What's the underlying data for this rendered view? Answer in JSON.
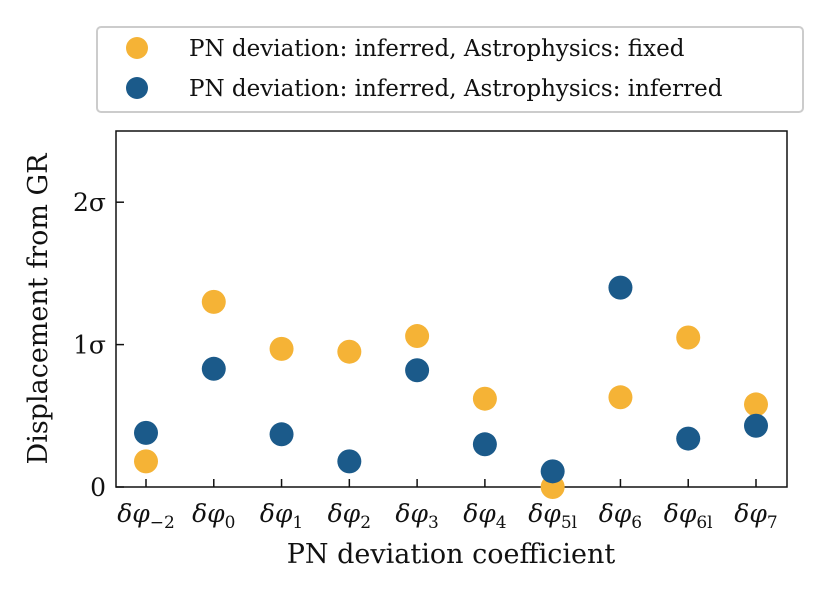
{
  "chart_data": {
    "type": "scatter",
    "title": "",
    "xlabel": "PN deviation coefficient",
    "ylabel": "Displacement from GR",
    "categories": [
      {
        "main": "δφ",
        "sub": "−2"
      },
      {
        "main": "δφ",
        "sub": "0"
      },
      {
        "main": "δφ",
        "sub": "1"
      },
      {
        "main": "δφ",
        "sub": "2"
      },
      {
        "main": "δφ",
        "sub": "3"
      },
      {
        "main": "δφ",
        "sub": "4"
      },
      {
        "main": "δφ",
        "sub": "5l"
      },
      {
        "main": "δφ",
        "sub": "6"
      },
      {
        "main": "δφ",
        "sub": "6l"
      },
      {
        "main": "δφ",
        "sub": "7"
      }
    ],
    "ylim": [
      0,
      2.5
    ],
    "yticks": [
      {
        "value": 0,
        "label": "0"
      },
      {
        "value": 1,
        "label": "1σ"
      },
      {
        "value": 2,
        "label": "2σ"
      }
    ],
    "grid": false,
    "legend_position": "top-center",
    "series": [
      {
        "name": "PN deviation: inferred, Astrophysics: fixed",
        "color": "#F5B336",
        "values": [
          0.18,
          1.3,
          0.97,
          0.95,
          1.06,
          0.62,
          0.0,
          0.63,
          1.05,
          0.58
        ]
      },
      {
        "name": "PN deviation: inferred, Astrophysics: inferred",
        "color": "#1B5A8A",
        "values": [
          0.38,
          0.83,
          0.37,
          0.18,
          0.82,
          0.3,
          0.11,
          1.4,
          0.34,
          0.43
        ]
      }
    ]
  }
}
